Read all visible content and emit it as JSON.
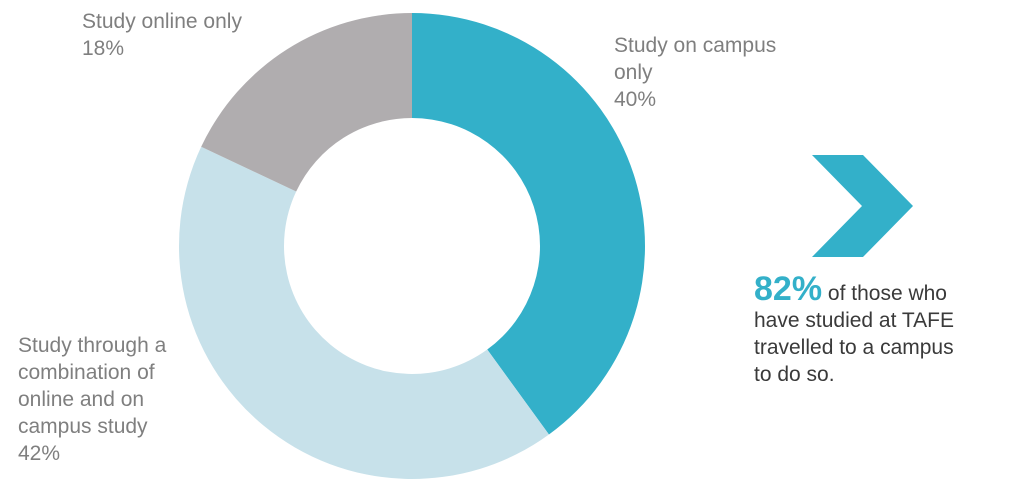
{
  "chart_data": {
    "type": "pie",
    "donut": true,
    "slices": [
      {
        "label_lines": [
          "Study on campus",
          "only"
        ],
        "value": 40,
        "value_label": "40%",
        "color": "#33b0c9"
      },
      {
        "label_lines": [
          "Study through a",
          "combination of",
          "online and on",
          "campus study"
        ],
        "value": 42,
        "value_label": "42%",
        "color": "#c7e1ea"
      },
      {
        "label_lines": [
          "Study online only"
        ],
        "value": 18,
        "value_label": "18%",
        "color": "#b0adaf"
      }
    ]
  },
  "callout": {
    "highlight": "82%",
    "lines": [
      " of those who",
      "have studied at TAFE",
      "travelled to a campus",
      "to do so."
    ],
    "arrow_color": "#33b0c9"
  }
}
